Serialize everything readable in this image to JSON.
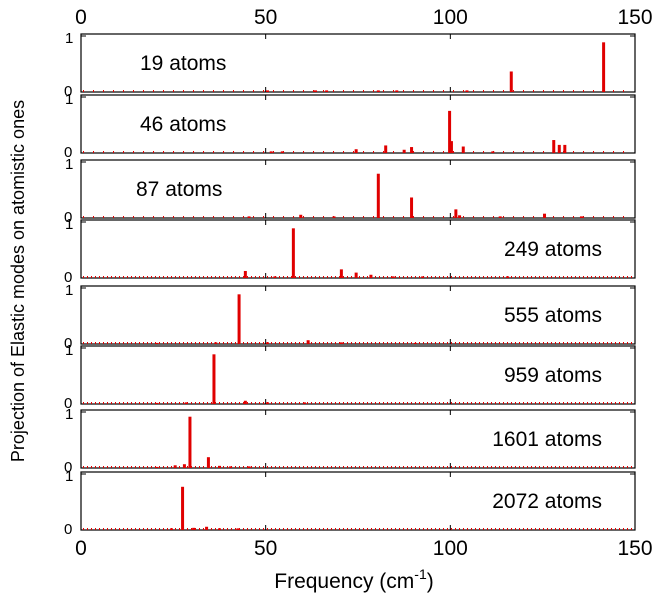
{
  "figure": {
    "ylabel": "Projection of Elastic modes on atomistic ones",
    "xlabel_main": "Frequency (cm",
    "xlabel_sup": "-1",
    "xlabel_close": ")"
  },
  "chart_data": {
    "type": "bar",
    "x_range": [
      0,
      150
    ],
    "x_ticks": [
      "0",
      "50",
      "100",
      "150"
    ],
    "y_range": [
      0,
      1
    ],
    "y_ticks": [
      "0",
      "1"
    ],
    "bar_color": "#e00000",
    "panels": [
      {
        "label": "19 atoms",
        "label_pos": "left",
        "bars": [
          [
            116.5,
            0.38
          ],
          [
            141.5,
            0.92
          ],
          [
            50.5,
            0.03
          ],
          [
            63.5,
            0.03
          ],
          [
            66.5,
            0.03
          ],
          [
            80.5,
            0.03
          ],
          [
            85.5,
            0.03
          ],
          [
            104.5,
            0.03
          ]
        ]
      },
      {
        "label": "46 atoms",
        "label_pos": "left",
        "bars": [
          [
            99.8,
            0.78
          ],
          [
            100.3,
            0.22
          ],
          [
            82.5,
            0.14
          ],
          [
            89.5,
            0.11
          ],
          [
            103.5,
            0.12
          ],
          [
            128.0,
            0.24
          ],
          [
            129.5,
            0.15
          ],
          [
            131.0,
            0.15
          ],
          [
            74.5,
            0.07
          ],
          [
            87.5,
            0.06
          ],
          [
            51.5,
            0.03
          ],
          [
            54.5,
            0.03
          ],
          [
            111.5,
            0.03
          ]
        ]
      },
      {
        "label": "87 atoms",
        "label_pos": "left",
        "bars": [
          [
            80.5,
            0.82
          ],
          [
            89.5,
            0.38
          ],
          [
            101.5,
            0.16
          ],
          [
            102.5,
            0.05
          ],
          [
            59.5,
            0.06
          ],
          [
            125.5,
            0.08
          ],
          [
            45.5,
            0.03
          ],
          [
            68.5,
            0.03
          ],
          [
            113.5,
            0.03
          ],
          [
            135.5,
            0.03
          ]
        ]
      },
      {
        "label": "249 atoms",
        "label_pos": "right",
        "bars": [
          [
            57.5,
            0.92
          ],
          [
            44.5,
            0.13
          ],
          [
            70.5,
            0.16
          ],
          [
            74.5,
            0.1
          ],
          [
            78.5,
            0.06
          ],
          [
            52.5,
            0.03
          ],
          [
            84.5,
            0.03
          ],
          [
            92.5,
            0.03
          ],
          [
            115.5,
            0.03
          ]
        ]
      },
      {
        "label": "555 atoms",
        "label_pos": "right",
        "bars": [
          [
            42.8,
            0.92
          ],
          [
            61.5,
            0.07
          ],
          [
            36.5,
            0.03
          ],
          [
            50.5,
            0.03
          ],
          [
            70.5,
            0.03
          ],
          [
            20.5,
            0.02
          ],
          [
            90.5,
            0.02
          ]
        ]
      },
      {
        "label": "959 atoms",
        "label_pos": "right",
        "bars": [
          [
            36.0,
            0.92
          ],
          [
            44.5,
            0.06
          ],
          [
            28.5,
            0.03
          ],
          [
            50.5,
            0.03
          ],
          [
            60.5,
            0.03
          ],
          [
            20.5,
            0.02
          ]
        ]
      },
      {
        "label": "1601 atoms",
        "label_pos": "right",
        "bars": [
          [
            29.5,
            0.95
          ],
          [
            34.5,
            0.2
          ],
          [
            28.0,
            0.07
          ],
          [
            25.5,
            0.05
          ],
          [
            37.5,
            0.04
          ],
          [
            40.5,
            0.03
          ],
          [
            45.5,
            0.03
          ],
          [
            20.5,
            0.02
          ]
        ]
      },
      {
        "label": "2072 atoms",
        "label_pos": "right",
        "bars": [
          [
            27.5,
            0.8
          ],
          [
            34.0,
            0.06
          ],
          [
            30.5,
            0.04
          ],
          [
            37.5,
            0.03
          ],
          [
            24.5,
            0.03
          ],
          [
            42.5,
            0.03
          ]
        ]
      }
    ]
  }
}
